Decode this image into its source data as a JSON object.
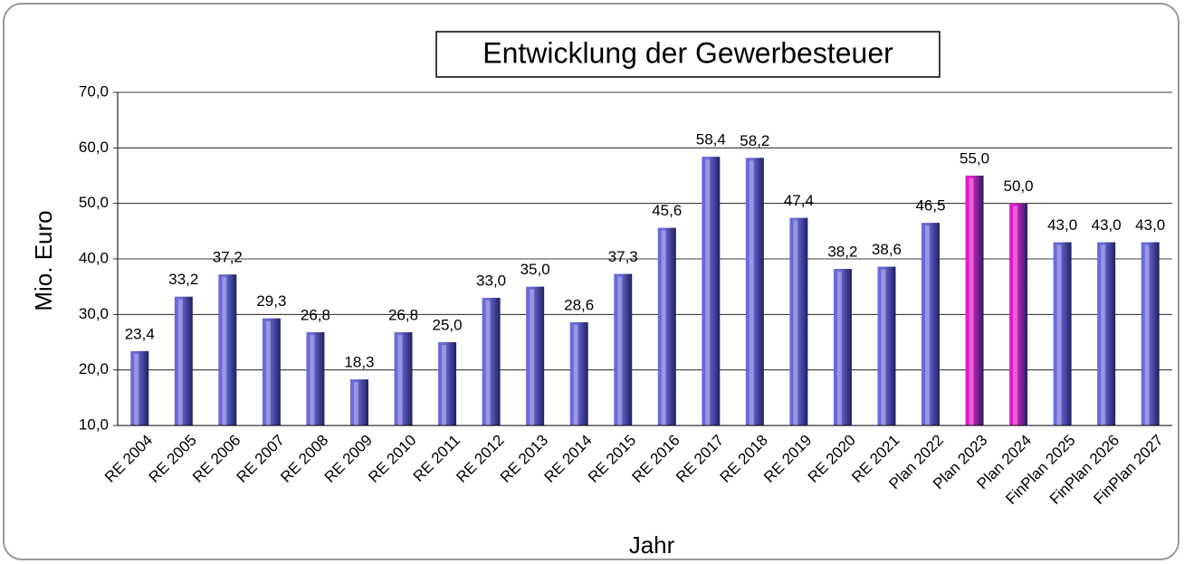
{
  "chart_data": {
    "type": "bar",
    "title": "Entwicklung der Gewerbesteuer",
    "x_label": "Jahr",
    "y_label": "Mio. Euro",
    "categories": [
      "RE 2004",
      "RE 2005",
      "RE 2006",
      "RE 2007",
      "RE 2008",
      "RE 2009",
      "RE 2010",
      "RE 2011",
      "RE 2012",
      "RE 2013",
      "RE 2014",
      "RE 2015",
      "RE 2016",
      "RE 2017",
      "RE 2018",
      "RE 2019",
      "RE 2020",
      "RE 2021",
      "Plan 2022",
      "Plan 2023",
      "Plan 2024",
      "FinPlan 2025",
      "FinPlan 2026",
      "FinPlan 2027"
    ],
    "values": [
      23.4,
      33.2,
      37.2,
      29.3,
      26.8,
      18.3,
      26.8,
      25.0,
      33.0,
      35.0,
      28.6,
      37.3,
      45.6,
      58.4,
      58.2,
      47.4,
      38.2,
      38.6,
      46.5,
      55.0,
      50.0,
      43.0,
      43.0,
      43.0
    ],
    "value_labels": [
      "23,4",
      "33,2",
      "37,2",
      "29,3",
      "26,8",
      "18,3",
      "26,8",
      "25,0",
      "33,0",
      "35,0",
      "28,6",
      "37,3",
      "45,6",
      "58,4",
      "58,2",
      "47,4",
      "38,2",
      "38,6",
      "46,5",
      "55,0",
      "50,0",
      "43,0",
      "43,0",
      "43,0"
    ],
    "colors": [
      "#6a6ad8",
      "#6a6ad8",
      "#6a6ad8",
      "#6a6ad8",
      "#6a6ad8",
      "#6a6ad8",
      "#6a6ad8",
      "#6a6ad8",
      "#6a6ad8",
      "#6a6ad8",
      "#6a6ad8",
      "#6a6ad8",
      "#6a6ad8",
      "#6a6ad8",
      "#6a6ad8",
      "#6a6ad8",
      "#6a6ad8",
      "#6a6ad8",
      "#6a6ad8",
      "#e01ec8",
      "#e01ec8",
      "#6a6ad8",
      "#6a6ad8",
      "#6a6ad8"
    ],
    "ylim": [
      10,
      70
    ],
    "yticks": [
      {
        "value": 10,
        "label": "10,0"
      },
      {
        "value": 20,
        "label": "20,0"
      },
      {
        "value": 30,
        "label": "30,0"
      },
      {
        "value": 40,
        "label": "40,0"
      },
      {
        "value": 50,
        "label": "50,0"
      },
      {
        "value": 60,
        "label": "60,0"
      },
      {
        "value": 70,
        "label": "70,0"
      }
    ],
    "grid": true
  }
}
